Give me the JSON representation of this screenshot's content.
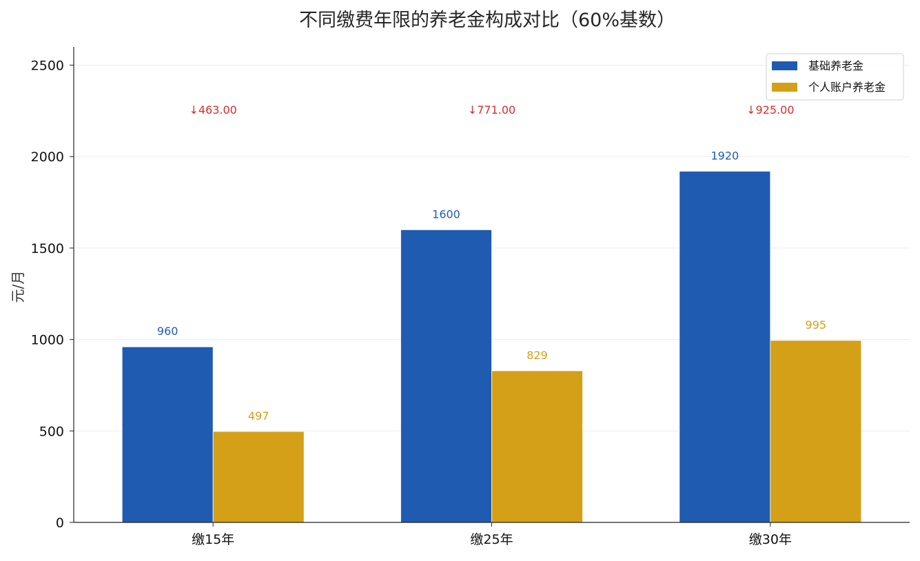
{
  "chart_data": {
    "type": "bar",
    "title": "不同缴费年限的养老金构成对比（60%基数）",
    "xlabel": "",
    "ylabel": "元/月",
    "ylim": [
      0,
      2600
    ],
    "yticks": [
      0,
      500,
      1000,
      1500,
      2000,
      2500
    ],
    "grid": true,
    "legend_position": "top-right",
    "categories": [
      "缴15年",
      "缴25年",
      "缴30年"
    ],
    "series": [
      {
        "name": "基础养老金",
        "color": "#1f5bb1",
        "values": [
          960,
          1600,
          1920
        ]
      },
      {
        "name": "个人账户养老金",
        "color": "#d4a017",
        "values": [
          497,
          829,
          995
        ]
      }
    ],
    "annotations": [
      {
        "category": "缴15年",
        "text": "↓463.00",
        "color": "#d32f2f"
      },
      {
        "category": "缴25年",
        "text": "↓771.00",
        "color": "#d32f2f"
      },
      {
        "category": "缴30年",
        "text": "↓925.00",
        "color": "#d32f2f"
      }
    ]
  }
}
